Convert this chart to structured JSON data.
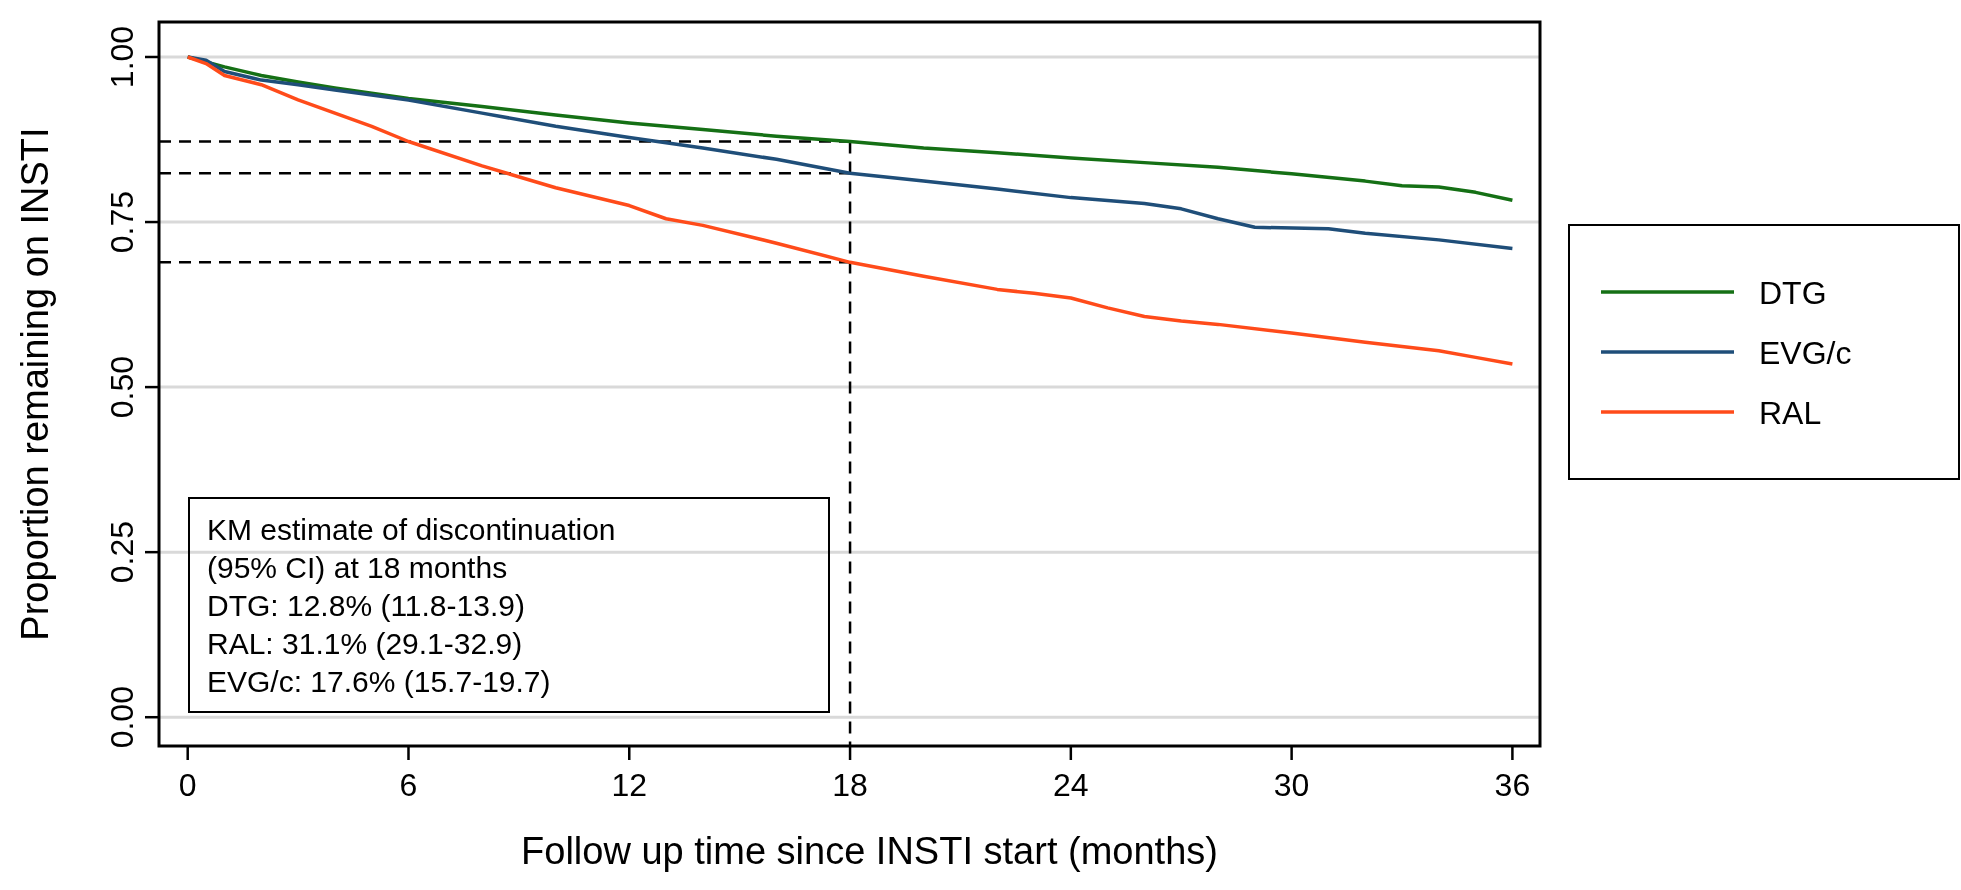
{
  "chart_data": {
    "type": "line",
    "xlabel": "Follow up time since INSTI start (months)",
    "ylabel": "Proportion remaining on INSTI",
    "xlim": [
      -0.78,
      36.75
    ],
    "ylim": [
      -0.0436,
      1.053
    ],
    "xticks": [
      0,
      6,
      12,
      18,
      24,
      30,
      36
    ],
    "yticks": [
      {
        "value": 0,
        "label": "0.00"
      },
      {
        "value": 0.25,
        "label": "0.25"
      },
      {
        "value": 0.5,
        "label": "0.50"
      },
      {
        "value": 0.75,
        "label": "0.75"
      },
      {
        "value": 1,
        "label": "1.00"
      }
    ],
    "grid": "y",
    "legend": "right",
    "line_style": "solid",
    "series": [
      {
        "name": "DTG",
        "color": "#157015",
        "x": [
          0,
          1,
          2,
          3,
          4,
          5,
          6,
          8,
          10,
          12,
          14,
          16,
          18,
          20,
          22,
          24,
          26,
          28,
          30,
          32,
          33,
          34,
          35,
          36
        ],
        "values": [
          1,
          0.985,
          0.972,
          0.962,
          0.953,
          0.945,
          0.937,
          0.925,
          0.912,
          0.9,
          0.89,
          0.88,
          0.872,
          0.862,
          0.855,
          0.847,
          0.84,
          0.833,
          0.823,
          0.812,
          0.805,
          0.803,
          0.795,
          0.783
        ]
      },
      {
        "name": "EVG/c",
        "color": "#1f4e79",
        "x": [
          0,
          0.5,
          1,
          2,
          3,
          4,
          6,
          8,
          10,
          12,
          14,
          16,
          18,
          20,
          22,
          24,
          26,
          27,
          28,
          29,
          31,
          32,
          34,
          36
        ],
        "values": [
          1,
          0.995,
          0.978,
          0.965,
          0.958,
          0.95,
          0.935,
          0.915,
          0.895,
          0.878,
          0.862,
          0.845,
          0.824,
          0.812,
          0.8,
          0.787,
          0.778,
          0.77,
          0.755,
          0.742,
          0.74,
          0.733,
          0.723,
          0.71
        ]
      },
      {
        "name": "RAL",
        "color": "#ff4b1a",
        "x": [
          0,
          0.5,
          1,
          2,
          3,
          4,
          5,
          6,
          8,
          10,
          12,
          13,
          14,
          16,
          18,
          20,
          22,
          23,
          24,
          25,
          26,
          27,
          28,
          30,
          32,
          34,
          35,
          36
        ],
        "values": [
          1,
          0.99,
          0.972,
          0.958,
          0.935,
          0.915,
          0.895,
          0.872,
          0.835,
          0.802,
          0.775,
          0.755,
          0.745,
          0.718,
          0.689,
          0.668,
          0.648,
          0.642,
          0.635,
          0.62,
          0.607,
          0.6,
          0.595,
          0.582,
          0.568,
          0.555,
          0.545,
          0.535
        ]
      }
    ],
    "ref_lines": [
      {
        "axis": "x",
        "value": 18,
        "line_style": "dashed",
        "color": "#000000"
      },
      {
        "axis": "y",
        "value": 0.872,
        "line_style": "dashed",
        "color": "#000000"
      },
      {
        "axis": "y",
        "value": 0.824,
        "line_style": "dashed",
        "color": "#000000"
      },
      {
        "axis": "y",
        "value": 0.689,
        "line_style": "dashed",
        "color": "#000000"
      }
    ],
    "annotations": [
      "KM estimate of discontinuation",
      "(95% CI) at 18 months",
      "DTG: 12.8% (11.8-13.9)",
      "RAL: 31.1% (29.1-32.9)",
      "EVG/c: 17.6% (15.7-19.7)"
    ]
  }
}
